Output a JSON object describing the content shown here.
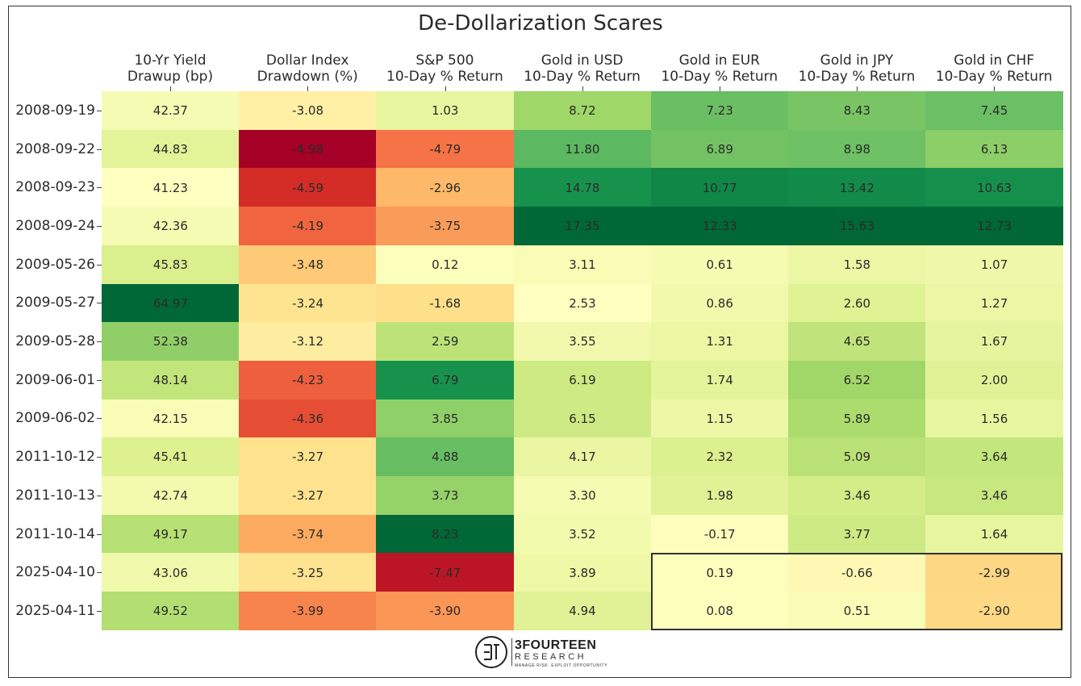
{
  "chart_data": {
    "type": "heatmap",
    "title": "De-Dollarization Scares",
    "columns": [
      [
        "10-Yr Yield",
        "Drawup (bp)"
      ],
      [
        "Dollar Index",
        "Drawdown (%)"
      ],
      [
        "S&P 500",
        "10-Day % Return"
      ],
      [
        "Gold in USD",
        "10-Day % Return"
      ],
      [
        "Gold in EUR",
        "10-Day % Return"
      ],
      [
        "Gold in JPY",
        "10-Day % Return"
      ],
      [
        "Gold in CHF",
        "10-Day % Return"
      ]
    ],
    "rows": [
      "2008-09-19",
      "2008-09-22",
      "2008-09-23",
      "2008-09-24",
      "2009-05-26",
      "2009-05-27",
      "2009-05-28",
      "2009-06-01",
      "2009-06-02",
      "2011-10-12",
      "2011-10-13",
      "2011-10-14",
      "2025-04-10",
      "2025-04-11"
    ],
    "values": [
      [
        42.37,
        -3.08,
        1.03,
        8.72,
        7.23,
        8.43,
        7.45
      ],
      [
        44.83,
        -4.98,
        -4.79,
        11.8,
        6.89,
        8.98,
        6.13
      ],
      [
        41.23,
        -4.59,
        -2.96,
        14.78,
        10.77,
        13.42,
        10.63
      ],
      [
        42.36,
        -4.19,
        -3.75,
        17.35,
        12.33,
        15.63,
        12.73
      ],
      [
        45.83,
        -3.48,
        0.12,
        3.11,
        0.61,
        1.58,
        1.07
      ],
      [
        64.97,
        -3.24,
        -1.68,
        2.53,
        0.86,
        2.6,
        1.27
      ],
      [
        52.38,
        -3.12,
        2.59,
        3.55,
        1.31,
        4.65,
        1.67
      ],
      [
        48.14,
        -4.23,
        6.79,
        6.19,
        1.74,
        6.52,
        2.0
      ],
      [
        42.15,
        -4.36,
        3.85,
        6.15,
        1.15,
        5.89,
        1.56
      ],
      [
        45.41,
        -3.27,
        4.88,
        4.17,
        2.32,
        5.09,
        3.64
      ],
      [
        42.74,
        -3.27,
        3.73,
        3.3,
        1.98,
        3.46,
        3.46
      ],
      [
        49.17,
        -3.74,
        8.23,
        3.52,
        -0.17,
        3.77,
        1.64
      ],
      [
        43.06,
        -3.25,
        -7.47,
        3.89,
        0.19,
        -0.66,
        -2.99
      ],
      [
        49.52,
        -3.99,
        -3.9,
        4.94,
        0.08,
        0.51,
        -2.9
      ]
    ],
    "colormap": "RdYlGn",
    "highlight": {
      "rows": [
        12,
        13
      ],
      "cols": [
        4,
        6
      ]
    }
  },
  "logo": {
    "name": "3FOURTEEN",
    "sub": "RESEARCH",
    "tag": "MANAGE RISK. EXPLOIT OPPORTUNITY"
  }
}
